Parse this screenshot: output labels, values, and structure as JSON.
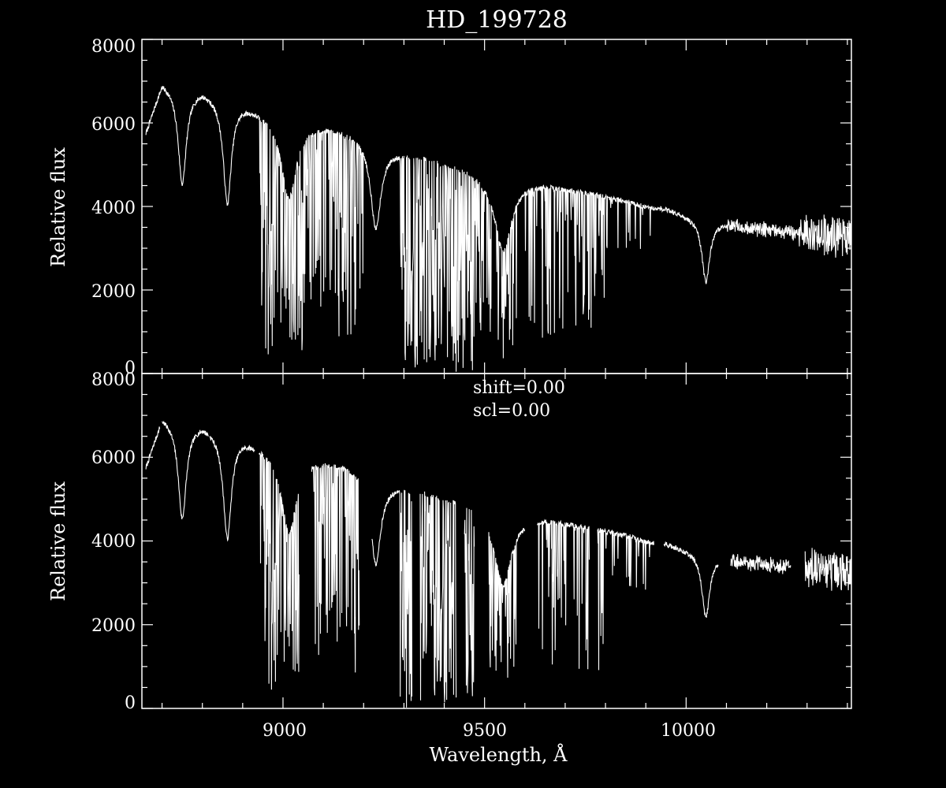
{
  "title": "HD_199728",
  "colors": {
    "background": "#000000",
    "foreground": "#ffffff"
  },
  "chart_data": [
    {
      "panel": "top",
      "type": "line",
      "xlabel": "",
      "ylabel": "Relative flux",
      "xlim": [
        8650,
        10410
      ],
      "ylim": [
        0,
        8000
      ],
      "yticks": [
        "0",
        "2000",
        "4000",
        "6000",
        "8000"
      ],
      "annotations": [],
      "gaps": [],
      "continuum": {
        "x": [
          8660,
          8700,
          8760,
          8800,
          8850,
          8900,
          8950,
          9000,
          9050,
          9100,
          9150,
          9200,
          9250,
          9300,
          9350,
          9400,
          9450,
          9500,
          9550,
          9600,
          9650,
          9700,
          9750,
          9800,
          9850,
          9900,
          9950,
          10000,
          10050,
          10100,
          10150,
          10200,
          10250,
          10300,
          10350,
          10410
        ],
        "y": [
          5800,
          7000,
          6800,
          6850,
          6600,
          6500,
          6300,
          6050,
          6000,
          5950,
          5850,
          5650,
          5400,
          5300,
          5200,
          5050,
          4950,
          4750,
          4650,
          4600,
          4550,
          4450,
          4350,
          4250,
          4150,
          4000,
          3950,
          3800,
          3700,
          3600,
          3500,
          3450,
          3400,
          3350,
          3300,
          3200
        ]
      },
      "broad_features": [
        {
          "center": 8750,
          "width": 12,
          "depth": 2250
        },
        {
          "center": 8862,
          "width": 12,
          "depth": 2450
        },
        {
          "center": 9015,
          "width": 22,
          "depth": 1800
        },
        {
          "center": 9230,
          "width": 15,
          "depth": 2000
        },
        {
          "center": 9546,
          "width": 25,
          "depth": 1700
        },
        {
          "center": 10049,
          "width": 12,
          "depth": 1500
        }
      ],
      "absorption_bands": [
        {
          "from": 8940,
          "to": 9050,
          "density": 0.55,
          "max_depth": 0.92
        },
        {
          "from": 9050,
          "to": 9200,
          "density": 0.4,
          "max_depth": 0.85
        },
        {
          "from": 9290,
          "to": 9480,
          "density": 0.7,
          "max_depth": 0.99
        },
        {
          "from": 9480,
          "to": 9580,
          "density": 0.45,
          "max_depth": 0.9
        },
        {
          "from": 9600,
          "to": 9800,
          "density": 0.3,
          "max_depth": 0.8
        },
        {
          "from": 9800,
          "to": 9920,
          "density": 0.12,
          "max_depth": 0.3
        }
      ],
      "noise": [
        {
          "from": 10280,
          "to": 10410,
          "amplitude": 450
        },
        {
          "from": 10100,
          "to": 10280,
          "amplitude": 150
        }
      ]
    },
    {
      "panel": "bottom",
      "type": "line",
      "xlabel": "Wavelength, Å",
      "ylabel": "Relative flux",
      "xlim": [
        8650,
        10410
      ],
      "ylim": [
        0,
        8000
      ],
      "xticks": [
        9000,
        9500,
        10000
      ],
      "xtick_labels": [
        "9000",
        "9500",
        "10000"
      ],
      "yticks": [
        "0",
        "2000",
        "4000",
        "6000",
        "8000"
      ],
      "annotations": [
        "shift=0.00",
        "scl=0.00"
      ],
      "gaps": [
        [
          8695,
          8700
        ],
        [
          8815,
          8818
        ],
        [
          8930,
          8940
        ],
        [
          9040,
          9070
        ],
        [
          9190,
          9220
        ],
        [
          9320,
          9340
        ],
        [
          9430,
          9450
        ],
        [
          9475,
          9510
        ],
        [
          9600,
          9630
        ],
        [
          9760,
          9780
        ],
        [
          9920,
          9945
        ],
        [
          10080,
          10110
        ],
        [
          10260,
          10295
        ]
      ],
      "continuum": {
        "x": [
          8660,
          8700,
          8760,
          8800,
          8850,
          8900,
          8950,
          9000,
          9050,
          9100,
          9150,
          9200,
          9250,
          9300,
          9350,
          9400,
          9450,
          9500,
          9550,
          9600,
          9650,
          9700,
          9750,
          9800,
          9850,
          9900,
          9950,
          10000,
          10050,
          10100,
          10150,
          10200,
          10250,
          10300,
          10350,
          10410
        ],
        "y": [
          5800,
          7000,
          6800,
          6850,
          6600,
          6500,
          6300,
          6050,
          6000,
          5950,
          5850,
          5650,
          5400,
          5300,
          5200,
          5050,
          4950,
          4750,
          4650,
          4600,
          4550,
          4450,
          4350,
          4250,
          4150,
          4000,
          3950,
          3800,
          3700,
          3600,
          3500,
          3450,
          3400,
          3350,
          3300,
          3200
        ]
      },
      "broad_features": [
        {
          "center": 8750,
          "width": 12,
          "depth": 2250
        },
        {
          "center": 8862,
          "width": 12,
          "depth": 2450
        },
        {
          "center": 9015,
          "width": 22,
          "depth": 1800
        },
        {
          "center": 9230,
          "width": 15,
          "depth": 2000
        },
        {
          "center": 9546,
          "width": 25,
          "depth": 1700
        },
        {
          "center": 10049,
          "width": 12,
          "depth": 1500
        }
      ],
      "absorption_bands": [
        {
          "from": 8940,
          "to": 9050,
          "density": 0.55,
          "max_depth": 0.92
        },
        {
          "from": 9050,
          "to": 9200,
          "density": 0.4,
          "max_depth": 0.85
        },
        {
          "from": 9290,
          "to": 9480,
          "density": 0.7,
          "max_depth": 0.99
        },
        {
          "from": 9480,
          "to": 9580,
          "density": 0.45,
          "max_depth": 0.9
        },
        {
          "from": 9600,
          "to": 9800,
          "density": 0.3,
          "max_depth": 0.8
        },
        {
          "from": 9800,
          "to": 9920,
          "density": 0.12,
          "max_depth": 0.3
        }
      ],
      "noise": [
        {
          "from": 10280,
          "to": 10410,
          "amplitude": 450
        },
        {
          "from": 10100,
          "to": 10280,
          "amplitude": 150
        }
      ]
    }
  ]
}
